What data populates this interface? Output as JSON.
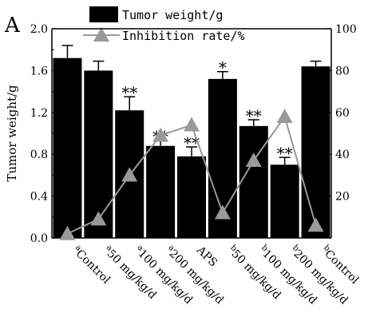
{
  "panel_label": "A",
  "chart_data": {
    "type": "bar",
    "categories": [
      {
        "prefix": "a",
        "label": "Control"
      },
      {
        "prefix": "a",
        "label": "50 mg/kg/d"
      },
      {
        "prefix": "a",
        "label": "100 mg/kg/d"
      },
      {
        "prefix": "a",
        "label": "200 mg/kg/d"
      },
      {
        "prefix": "",
        "label": "APS"
      },
      {
        "prefix": "b",
        "label": "50 mg/kg/d"
      },
      {
        "prefix": "b",
        "label": "100 mg/kg/d"
      },
      {
        "prefix": "b",
        "label": "200 mg/kg/d"
      },
      {
        "prefix": "b",
        "label": "Control"
      }
    ],
    "series": [
      {
        "name": "Tumor weight/g",
        "type": "bar",
        "axis": "left",
        "values": [
          1.72,
          1.6,
          1.22,
          0.88,
          0.78,
          1.52,
          1.07,
          0.7,
          1.64
        ],
        "errors": [
          0.12,
          0.09,
          0.13,
          0.05,
          0.09,
          0.07,
          0.06,
          0.07,
          0.05
        ],
        "significance": [
          "",
          "",
          "**",
          "**",
          "**",
          "*",
          "**",
          "**",
          ""
        ]
      },
      {
        "name": "Inhibition rate/%",
        "type": "line",
        "axis": "right",
        "values": [
          2,
          9,
          30,
          49,
          54,
          12,
          37,
          58,
          6
        ]
      }
    ],
    "ylabel": "Tumor weight/g",
    "ylim": [
      0.0,
      2.0
    ],
    "yticks": [
      "0.0",
      "0.4",
      "0.8",
      "1.2",
      "1.6",
      "2.0"
    ],
    "y2lim": [
      0,
      100
    ],
    "y2ticks": [
      "20",
      "40",
      "60",
      "80",
      "100"
    ],
    "legend_position": "top-center",
    "grid": false,
    "colors": {
      "bar": "#000000",
      "line": "#999999",
      "marker": "#999999"
    }
  }
}
